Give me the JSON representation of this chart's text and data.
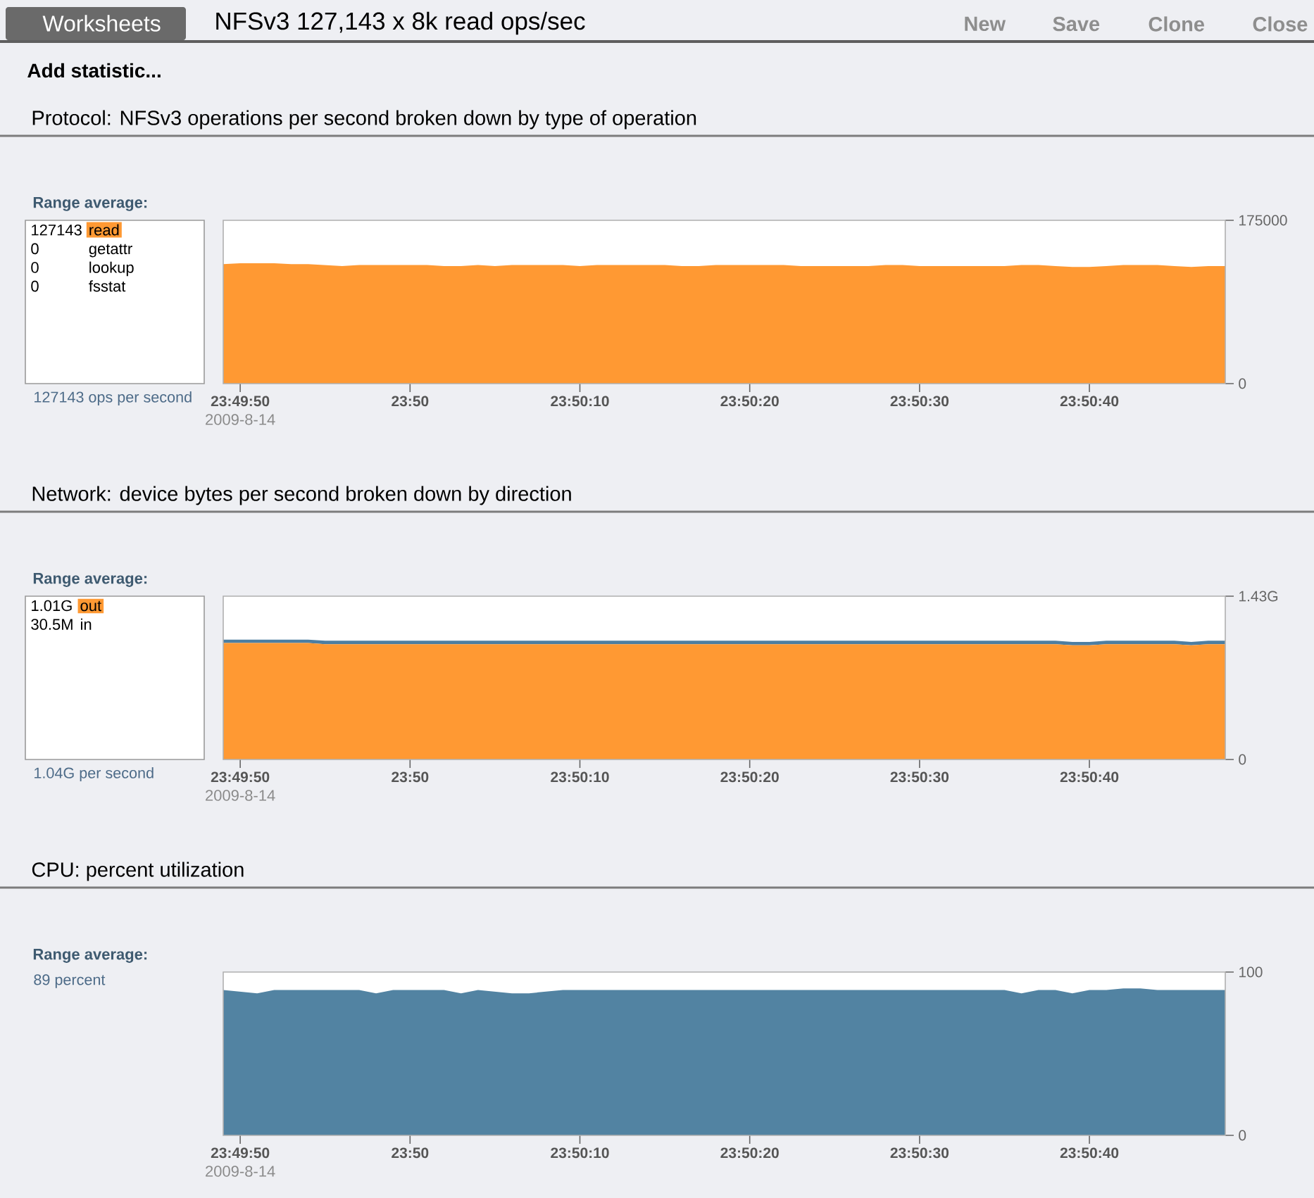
{
  "chart_data": [
    {
      "type": "other",
      "title": "NFSv3 127,143 x 8k read ops/sec",
      "annotations": [
        "Worksheets",
        "New",
        "Save",
        "Clone",
        "Close",
        "Add statistic..."
      ]
    },
    {
      "type": "area",
      "title": "Protocol: NFSv3 operations per second broken down by type of operation",
      "legend_title": "Range average:",
      "legend": "left",
      "x": [
        "2009-08-14T23:49:49",
        "2009-08-14T23:49:50",
        "2009-08-14T23:49:51",
        "2009-08-14T23:49:52",
        "2009-08-14T23:49:53",
        "2009-08-14T23:49:54",
        "2009-08-14T23:49:55",
        "2009-08-14T23:49:56",
        "2009-08-14T23:49:57",
        "2009-08-14T23:49:58",
        "2009-08-14T23:49:59",
        "2009-08-14T23:50:00",
        "2009-08-14T23:50:01",
        "2009-08-14T23:50:02",
        "2009-08-14T23:50:03",
        "2009-08-14T23:50:04",
        "2009-08-14T23:50:05",
        "2009-08-14T23:50:06",
        "2009-08-14T23:50:07",
        "2009-08-14T23:50:08",
        "2009-08-14T23:50:09",
        "2009-08-14T23:50:10",
        "2009-08-14T23:50:11",
        "2009-08-14T23:50:12",
        "2009-08-14T23:50:13",
        "2009-08-14T23:50:14",
        "2009-08-14T23:50:15",
        "2009-08-14T23:50:16",
        "2009-08-14T23:50:17",
        "2009-08-14T23:50:18",
        "2009-08-14T23:50:19",
        "2009-08-14T23:50:20",
        "2009-08-14T23:50:21",
        "2009-08-14T23:50:22",
        "2009-08-14T23:50:23",
        "2009-08-14T23:50:24",
        "2009-08-14T23:50:25",
        "2009-08-14T23:50:26",
        "2009-08-14T23:50:27",
        "2009-08-14T23:50:28",
        "2009-08-14T23:50:29",
        "2009-08-14T23:50:30",
        "2009-08-14T23:50:31",
        "2009-08-14T23:50:32",
        "2009-08-14T23:50:33",
        "2009-08-14T23:50:34",
        "2009-08-14T23:50:35",
        "2009-08-14T23:50:36",
        "2009-08-14T23:50:37",
        "2009-08-14T23:50:38",
        "2009-08-14T23:50:39",
        "2009-08-14T23:50:40",
        "2009-08-14T23:50:41",
        "2009-08-14T23:50:42",
        "2009-08-14T23:50:43",
        "2009-08-14T23:50:44",
        "2009-08-14T23:50:45",
        "2009-08-14T23:50:46",
        "2009-08-14T23:50:47",
        "2009-08-14T23:50:48"
      ],
      "series": [
        {
          "name": "read",
          "color": "#ff9933",
          "values": [
            128000,
            129000,
            129000,
            129000,
            128000,
            128000,
            127000,
            126000,
            127000,
            127000,
            127000,
            127000,
            127000,
            126000,
            126000,
            127000,
            126000,
            127000,
            127000,
            127000,
            127000,
            126000,
            127000,
            127000,
            127000,
            127000,
            127000,
            126000,
            126000,
            127000,
            127000,
            127000,
            127000,
            127000,
            126000,
            126000,
            126000,
            126000,
            126000,
            127000,
            127000,
            126000,
            126000,
            126000,
            126000,
            126000,
            126000,
            127000,
            127000,
            126000,
            125000,
            125000,
            126000,
            127000,
            127000,
            127000,
            126000,
            125000,
            126000,
            126000
          ]
        }
      ],
      "xlim": [
        "2009-08-14T23:49:49",
        "2009-08-14T23:50:48"
      ],
      "xticks": [
        {
          "value": "2009-08-14T23:49:50",
          "label": "23:49:50"
        },
        {
          "value": "2009-08-14T23:50:00",
          "label": "23:50"
        },
        {
          "value": "2009-08-14T23:50:10",
          "label": "23:50:10"
        },
        {
          "value": "2009-08-14T23:50:20",
          "label": "23:50:20"
        },
        {
          "value": "2009-08-14T23:50:30",
          "label": "23:50:30"
        },
        {
          "value": "2009-08-14T23:50:40",
          "label": "23:50:40"
        }
      ],
      "ylim": [
        0,
        175000
      ],
      "yticks": [
        0,
        175000
      ],
      "annotations": [
        "127143",
        "0",
        "getattr",
        "0",
        "lookup",
        "0",
        "fsstat",
        "127143 ops per second",
        "2009-8-14"
      ]
    },
    {
      "type": "area",
      "title": "Network: device bytes per second broken down by direction",
      "legend_title": "Range average:",
      "legend": "left",
      "stacked": true,
      "x": [
        "2009-08-14T23:49:49",
        "2009-08-14T23:49:50",
        "2009-08-14T23:49:51",
        "2009-08-14T23:49:52",
        "2009-08-14T23:49:53",
        "2009-08-14T23:49:54",
        "2009-08-14T23:49:55",
        "2009-08-14T23:49:56",
        "2009-08-14T23:49:57",
        "2009-08-14T23:49:58",
        "2009-08-14T23:49:59",
        "2009-08-14T23:50:00",
        "2009-08-14T23:50:01",
        "2009-08-14T23:50:02",
        "2009-08-14T23:50:03",
        "2009-08-14T23:50:04",
        "2009-08-14T23:50:05",
        "2009-08-14T23:50:06",
        "2009-08-14T23:50:07",
        "2009-08-14T23:50:08",
        "2009-08-14T23:50:09",
        "2009-08-14T23:50:10",
        "2009-08-14T23:50:11",
        "2009-08-14T23:50:12",
        "2009-08-14T23:50:13",
        "2009-08-14T23:50:14",
        "2009-08-14T23:50:15",
        "2009-08-14T23:50:16",
        "2009-08-14T23:50:17",
        "2009-08-14T23:50:18",
        "2009-08-14T23:50:19",
        "2009-08-14T23:50:20",
        "2009-08-14T23:50:21",
        "2009-08-14T23:50:22",
        "2009-08-14T23:50:23",
        "2009-08-14T23:50:24",
        "2009-08-14T23:50:25",
        "2009-08-14T23:50:26",
        "2009-08-14T23:50:27",
        "2009-08-14T23:50:28",
        "2009-08-14T23:50:29",
        "2009-08-14T23:50:30",
        "2009-08-14T23:50:31",
        "2009-08-14T23:50:32",
        "2009-08-14T23:50:33",
        "2009-08-14T23:50:34",
        "2009-08-14T23:50:35",
        "2009-08-14T23:50:36",
        "2009-08-14T23:50:37",
        "2009-08-14T23:50:38",
        "2009-08-14T23:50:39",
        "2009-08-14T23:50:40",
        "2009-08-14T23:50:41",
        "2009-08-14T23:50:42",
        "2009-08-14T23:50:43",
        "2009-08-14T23:50:44",
        "2009-08-14T23:50:45",
        "2009-08-14T23:50:46",
        "2009-08-14T23:50:47",
        "2009-08-14T23:50:48"
      ],
      "series": [
        {
          "name": "out",
          "color": "#ff9933",
          "values": [
            1.02,
            1.02,
            1.02,
            1.02,
            1.02,
            1.02,
            1.01,
            1.01,
            1.01,
            1.01,
            1.01,
            1.01,
            1.01,
            1.01,
            1.01,
            1.01,
            1.01,
            1.01,
            1.01,
            1.01,
            1.01,
            1.01,
            1.01,
            1.01,
            1.01,
            1.01,
            1.01,
            1.01,
            1.01,
            1.01,
            1.01,
            1.01,
            1.01,
            1.01,
            1.01,
            1.01,
            1.01,
            1.01,
            1.01,
            1.01,
            1.01,
            1.01,
            1.01,
            1.01,
            1.01,
            1.01,
            1.01,
            1.01,
            1.01,
            1.01,
            1.0,
            1.0,
            1.01,
            1.01,
            1.01,
            1.01,
            1.01,
            1.0,
            1.01,
            1.01
          ]
        },
        {
          "color": "#4d7ea1",
          "values": [
            0.03,
            0.03,
            0.03,
            0.03,
            0.03,
            0.03,
            0.03,
            0.03,
            0.03,
            0.03,
            0.03,
            0.03,
            0.03,
            0.03,
            0.03,
            0.03,
            0.03,
            0.03,
            0.03,
            0.03,
            0.03,
            0.03,
            0.03,
            0.03,
            0.03,
            0.03,
            0.03,
            0.03,
            0.03,
            0.03,
            0.03,
            0.03,
            0.03,
            0.03,
            0.03,
            0.03,
            0.03,
            0.03,
            0.03,
            0.03,
            0.03,
            0.03,
            0.03,
            0.03,
            0.03,
            0.03,
            0.03,
            0.03,
            0.03,
            0.03,
            0.03,
            0.03,
            0.03,
            0.03,
            0.03,
            0.03,
            0.03,
            0.03,
            0.03,
            0.03
          ]
        }
      ],
      "xlim": [
        "2009-08-14T23:49:49",
        "2009-08-14T23:50:48"
      ],
      "xticks": [
        {
          "value": "2009-08-14T23:49:50",
          "label": "23:49:50"
        },
        {
          "value": "2009-08-14T23:50:00",
          "label": "23:50"
        },
        {
          "value": "2009-08-14T23:50:10",
          "label": "23:50:10"
        },
        {
          "value": "2009-08-14T23:50:20",
          "label": "23:50:20"
        },
        {
          "value": "2009-08-14T23:50:30",
          "label": "23:50:30"
        },
        {
          "value": "2009-08-14T23:50:40",
          "label": "23:50:40"
        }
      ],
      "ylim": [
        0,
        1.43
      ],
      "yticks": [
        0,
        {
          "value": 1.43,
          "label": "1.43G"
        }
      ],
      "annotations": [
        "1.01G",
        "30.5M",
        "in",
        "1.04G per second",
        "2009-8-14"
      ]
    },
    {
      "type": "area",
      "title": "CPU: percent utilization",
      "legend_title": "Range average:",
      "x": [
        "2009-08-14T23:49:49",
        "2009-08-14T23:49:50",
        "2009-08-14T23:49:51",
        "2009-08-14T23:49:52",
        "2009-08-14T23:49:53",
        "2009-08-14T23:49:54",
        "2009-08-14T23:49:55",
        "2009-08-14T23:49:56",
        "2009-08-14T23:49:57",
        "2009-08-14T23:49:58",
        "2009-08-14T23:49:59",
        "2009-08-14T23:50:00",
        "2009-08-14T23:50:01",
        "2009-08-14T23:50:02",
        "2009-08-14T23:50:03",
        "2009-08-14T23:50:04",
        "2009-08-14T23:50:05",
        "2009-08-14T23:50:06",
        "2009-08-14T23:50:07",
        "2009-08-14T23:50:08",
        "2009-08-14T23:50:09",
        "2009-08-14T23:50:10",
        "2009-08-14T23:50:11",
        "2009-08-14T23:50:12",
        "2009-08-14T23:50:13",
        "2009-08-14T23:50:14",
        "2009-08-14T23:50:15",
        "2009-08-14T23:50:16",
        "2009-08-14T23:50:17",
        "2009-08-14T23:50:18",
        "2009-08-14T23:50:19",
        "2009-08-14T23:50:20",
        "2009-08-14T23:50:21",
        "2009-08-14T23:50:22",
        "2009-08-14T23:50:23",
        "2009-08-14T23:50:24",
        "2009-08-14T23:50:25",
        "2009-08-14T23:50:26",
        "2009-08-14T23:50:27",
        "2009-08-14T23:50:28",
        "2009-08-14T23:50:29",
        "2009-08-14T23:50:30",
        "2009-08-14T23:50:31",
        "2009-08-14T23:50:32",
        "2009-08-14T23:50:33",
        "2009-08-14T23:50:34",
        "2009-08-14T23:50:35",
        "2009-08-14T23:50:36",
        "2009-08-14T23:50:37",
        "2009-08-14T23:50:38",
        "2009-08-14T23:50:39",
        "2009-08-14T23:50:40",
        "2009-08-14T23:50:41",
        "2009-08-14T23:50:42",
        "2009-08-14T23:50:43",
        "2009-08-14T23:50:44",
        "2009-08-14T23:50:45",
        "2009-08-14T23:50:46",
        "2009-08-14T23:50:47",
        "2009-08-14T23:50:48"
      ],
      "series": [
        {
          "color": "#5283a2",
          "values": [
            89,
            88,
            87,
            89,
            89,
            89,
            89,
            89,
            89,
            87,
            89,
            89,
            89,
            89,
            87,
            89,
            88,
            87,
            87,
            88,
            89,
            89,
            89,
            89,
            89,
            89,
            89,
            89,
            89,
            89,
            89,
            89,
            89,
            89,
            89,
            89,
            89,
            89,
            89,
            89,
            89,
            89,
            89,
            89,
            89,
            89,
            89,
            87,
            89,
            89,
            87,
            89,
            89,
            90,
            90,
            89,
            89,
            89,
            89,
            89
          ]
        }
      ],
      "xlim": [
        "2009-08-14T23:49:49",
        "2009-08-14T23:50:48"
      ],
      "xticks": [
        {
          "value": "2009-08-14T23:49:50",
          "label": "23:49:50"
        },
        {
          "value": "2009-08-14T23:50:00",
          "label": "23:50"
        },
        {
          "value": "2009-08-14T23:50:10",
          "label": "23:50:10"
        },
        {
          "value": "2009-08-14T23:50:20",
          "label": "23:50:20"
        },
        {
          "value": "2009-08-14T23:50:30",
          "label": "23:50:30"
        },
        {
          "value": "2009-08-14T23:50:40",
          "label": "23:50:40"
        }
      ],
      "ylim": [
        0,
        100
      ],
      "yticks": [
        0,
        100
      ],
      "annotations": [
        "89 percent",
        "2009-8-14"
      ]
    }
  ]
}
